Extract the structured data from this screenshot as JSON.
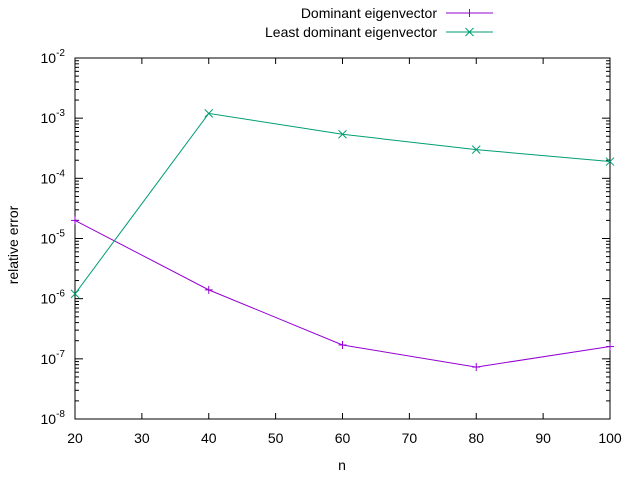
{
  "chart_data": {
    "type": "line",
    "title": "",
    "xlabel": "n",
    "ylabel": "relative error",
    "xlim": [
      20,
      100
    ],
    "ylim": [
      1e-08,
      0.01
    ],
    "yscale": "log",
    "grid": false,
    "legend_position": "top-right",
    "x_ticks": [
      "20",
      "30",
      "40",
      "50",
      "60",
      "70",
      "80",
      "90",
      "100"
    ],
    "y_ticks": [
      {
        "base": "10",
        "exp": "-8"
      },
      {
        "base": "10",
        "exp": "-7"
      },
      {
        "base": "10",
        "exp": "-6"
      },
      {
        "base": "10",
        "exp": "-5"
      },
      {
        "base": "10",
        "exp": "-4"
      },
      {
        "base": "10",
        "exp": "-3"
      },
      {
        "base": "10",
        "exp": "-2"
      }
    ],
    "series": [
      {
        "name": "Dominant eigenvector",
        "color": "#9400d3",
        "marker": "plus",
        "x": [
          20,
          40,
          60,
          80,
          100
        ],
        "y": [
          2e-05,
          1.4e-06,
          1.7e-07,
          7.3e-08,
          1.6e-07
        ]
      },
      {
        "name": "Least dominant eigenvector",
        "color": "#009e73",
        "marker": "cross",
        "x": [
          20,
          40,
          60,
          80,
          100
        ],
        "y": [
          1.2e-06,
          0.0012,
          0.00054,
          0.0003,
          0.00019
        ]
      }
    ]
  }
}
